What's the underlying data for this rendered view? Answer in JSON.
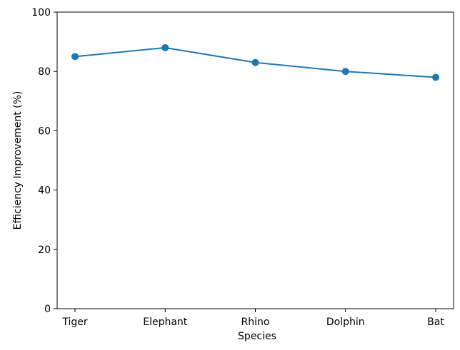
{
  "chart_data": {
    "type": "line",
    "title": "",
    "xlabel": "Species",
    "ylabel": "Efficiency Improvement (%)",
    "categories": [
      "Tiger",
      "Elephant",
      "Rhino",
      "Dolphin",
      "Bat"
    ],
    "series": [
      {
        "values": [
          85,
          88,
          83,
          80,
          78
        ],
        "color": "#1f77b4",
        "marker": "circle"
      }
    ],
    "ylim": [
      0,
      100
    ],
    "yticks": [
      0,
      20,
      40,
      60,
      80,
      100
    ],
    "ytick_labels": [
      "0",
      "20",
      "40",
      "60",
      "80",
      "100"
    ],
    "grid": false,
    "legend": "none"
  },
  "colors": {
    "series": "#1f77b4",
    "axes": "#000000",
    "background": "#ffffff"
  }
}
